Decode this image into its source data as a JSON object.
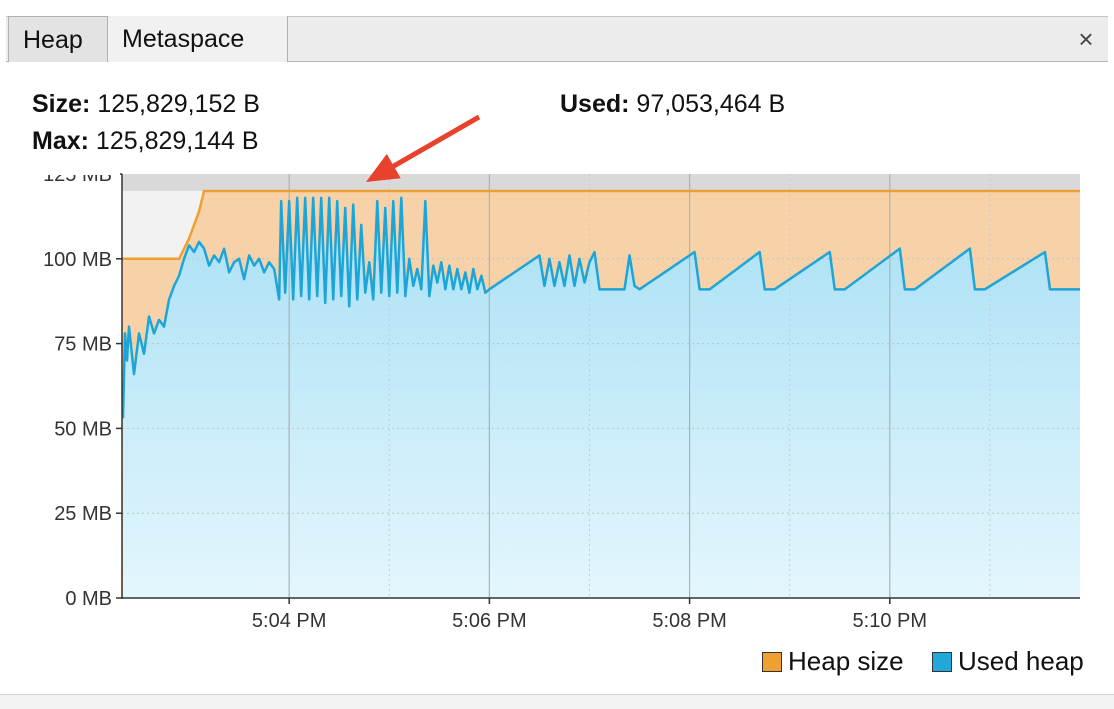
{
  "tabs": [
    {
      "label": "Heap",
      "active": true
    },
    {
      "label": "Metaspace",
      "active": false
    }
  ],
  "close_icon": "close-icon",
  "stats": {
    "size_label": "Size:",
    "size_value": "125,829,152 B",
    "max_label": "Max:",
    "max_value": "125,829,144 B",
    "used_label": "Used:",
    "used_value": "97,053,464 B"
  },
  "legend": [
    {
      "label": "Heap size",
      "color": "#f0a030"
    },
    {
      "label": "Used heap",
      "color": "#22a8d8"
    }
  ],
  "colors": {
    "heap_line": "#f0a030",
    "heap_fill": "#f7d2a8",
    "used_line": "#1ea5d8",
    "used_fill_top": "#a8e0f5",
    "used_fill_bottom": "#e4f6fd",
    "annotation_arrow": "#e8412c"
  },
  "chart_data": {
    "type": "area",
    "x_unit": "minutes",
    "xlabel": "",
    "ylabel": "",
    "x_ticks": [
      "5:04 PM",
      "5:06 PM",
      "5:08 PM",
      "5:10 PM"
    ],
    "x_tick_values": [
      4,
      6,
      8,
      10
    ],
    "xlim": [
      2.33,
      11.9
    ],
    "y_ticks": [
      "0 MB",
      "25 MB",
      "50 MB",
      "75 MB",
      "100 MB",
      "125 MB"
    ],
    "y_tick_values": [
      0,
      25,
      50,
      75,
      100,
      125
    ],
    "ylim": [
      0,
      125
    ],
    "max_line_mb": 120,
    "legend_position": "bottom-right",
    "series": [
      {
        "name": "Heap size",
        "x": [
          2.33,
          2.9,
          2.95,
          3.0,
          3.05,
          3.1,
          3.15,
          11.9
        ],
        "values": [
          100,
          100,
          103,
          106,
          110,
          114,
          120,
          120
        ]
      },
      {
        "name": "Used heap",
        "x": [
          2.34,
          2.36,
          2.38,
          2.4,
          2.45,
          2.5,
          2.55,
          2.6,
          2.65,
          2.7,
          2.75,
          2.8,
          2.85,
          2.9,
          2.95,
          3.0,
          3.05,
          3.1,
          3.15,
          3.2,
          3.25,
          3.3,
          3.35,
          3.4,
          3.45,
          3.5,
          3.55,
          3.6,
          3.65,
          3.7,
          3.75,
          3.8,
          3.85,
          3.9,
          3.92,
          3.96,
          4.0,
          4.04,
          4.08,
          4.12,
          4.16,
          4.2,
          4.24,
          4.28,
          4.32,
          4.36,
          4.4,
          4.44,
          4.48,
          4.52,
          4.56,
          4.6,
          4.64,
          4.68,
          4.72,
          4.76,
          4.8,
          4.84,
          4.88,
          4.92,
          4.96,
          5.0,
          5.04,
          5.08,
          5.12,
          5.16,
          5.2,
          5.24,
          5.28,
          5.32,
          5.36,
          5.4,
          5.44,
          5.48,
          5.52,
          5.56,
          5.6,
          5.64,
          5.68,
          5.72,
          5.76,
          5.8,
          5.84,
          5.88,
          5.92,
          5.96,
          6.0,
          6.5,
          6.55,
          6.6,
          6.65,
          6.7,
          6.75,
          6.8,
          6.85,
          6.9,
          6.95,
          7.0,
          7.05,
          7.1,
          7.35,
          7.4,
          7.45,
          7.5,
          8.05,
          8.1,
          8.2,
          8.7,
          8.75,
          8.85,
          9.4,
          9.45,
          9.55,
          10.1,
          10.15,
          10.25,
          10.8,
          10.85,
          10.95,
          11.55,
          11.6,
          11.75,
          11.9
        ],
        "values": [
          53,
          78,
          70,
          80,
          66,
          78,
          72,
          83,
          78,
          82,
          80,
          88,
          92,
          95,
          100,
          104,
          102,
          105,
          103,
          98,
          101,
          99,
          103,
          96,
          99,
          100,
          94,
          101,
          98,
          100,
          96,
          99,
          97,
          88,
          117,
          90,
          117,
          88,
          118,
          89,
          118,
          88,
          118,
          89,
          118,
          87,
          118,
          88,
          117,
          89,
          115,
          86,
          116,
          88,
          110,
          90,
          99,
          88,
          117,
          90,
          115,
          89,
          117,
          90,
          118,
          89,
          100,
          92,
          97,
          91,
          117,
          89,
          98,
          93,
          99,
          91,
          98,
          91,
          97,
          91,
          96,
          90,
          97,
          91,
          95,
          90,
          91,
          101,
          92,
          100,
          92,
          99,
          92,
          101,
          92,
          100,
          93,
          99,
          102,
          91,
          91,
          101,
          92,
          91,
          102,
          91,
          91,
          102,
          91,
          91,
          102,
          91,
          91,
          103,
          91,
          91,
          103,
          91,
          91,
          102,
          91,
          91,
          91
        ]
      }
    ]
  }
}
